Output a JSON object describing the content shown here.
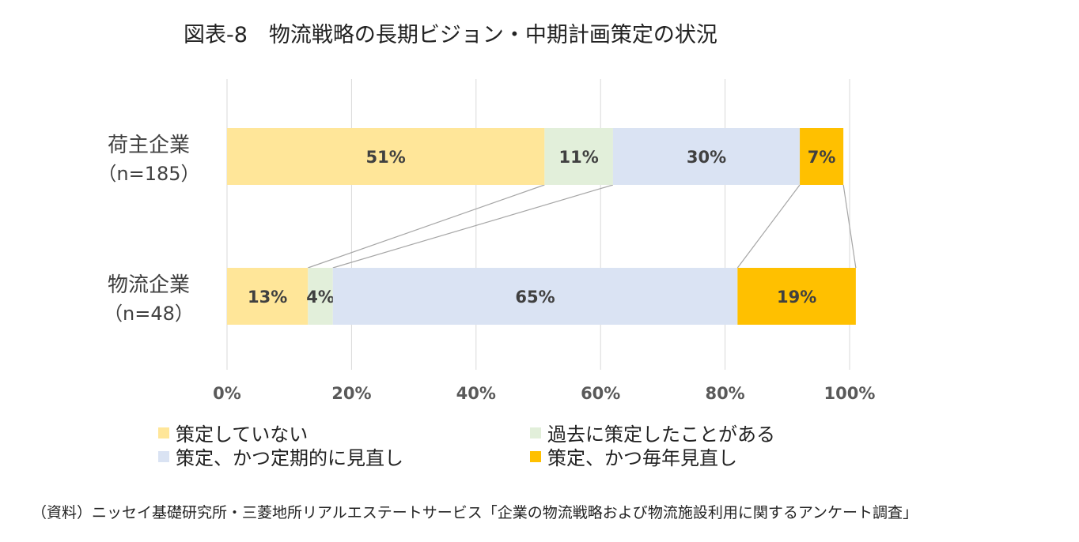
{
  "title": "図表-8　物流戦略の長期ビジョン・中期計画策定の状況",
  "source": "（資料）ニッセイ基礎研究所・三菱地所リアルエステートサービス「企業の物流戦略および物流施設利用に関するアンケート調査」",
  "chart_data": {
    "type": "bar",
    "orientation": "horizontal",
    "stacked": true,
    "percent_stacked": true,
    "categories": [
      {
        "name": "荷主企業",
        "n": "（n=185）"
      },
      {
        "name": "物流企業",
        "n": "（n=48）"
      }
    ],
    "series": [
      {
        "name": "策定していない",
        "color": "#FFE699",
        "values": [
          51,
          13
        ],
        "labels": [
          "51%",
          "13%"
        ]
      },
      {
        "name": "過去に策定したことがある",
        "color": "#E2EFDA",
        "values": [
          11,
          4
        ],
        "labels": [
          "11%",
          "4%"
        ]
      },
      {
        "name": "策定、かつ定期的に見直し",
        "color": "#DAE3F3",
        "values": [
          30,
          65
        ],
        "labels": [
          "30%",
          "65%"
        ]
      },
      {
        "name": "策定、かつ毎年見直し",
        "color": "#FFC000",
        "values": [
          7,
          19
        ],
        "labels": [
          "7%",
          "19%"
        ]
      }
    ],
    "xticks": [
      "0%",
      "20%",
      "40%",
      "60%",
      "80%",
      "100%"
    ],
    "xlim": [
      0,
      100
    ],
    "grid": true,
    "series_lines": true,
    "legend_position": "bottom"
  }
}
